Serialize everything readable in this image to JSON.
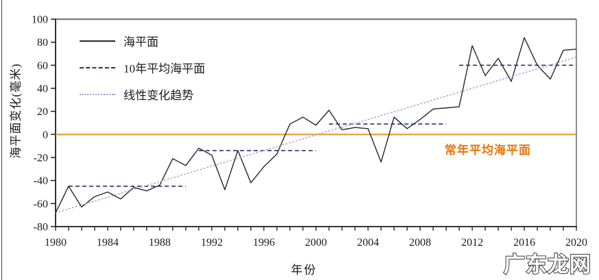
{
  "watermark": {
    "text": "广东龙网"
  },
  "chart_data": {
    "type": "line",
    "title": "",
    "xlabel": "年份",
    "ylabel": "海平面变化(毫米)",
    "xlim": [
      1980,
      2020
    ],
    "ylim": [
      -80,
      100
    ],
    "x_tick_labels": [
      1980,
      1984,
      1988,
      1992,
      1996,
      2000,
      2004,
      2008,
      2012,
      2016,
      2020
    ],
    "x_minor_tick_step": 1,
    "y_tick_labels": [
      100,
      80,
      60,
      40,
      20,
      0,
      -20,
      -40,
      -60,
      -80
    ],
    "grid": false,
    "legend_position": "upper-left-inside",
    "border_color": "#808080",
    "axis_color": "#1a1a1a",
    "series": [
      {
        "name": "海平面",
        "type": "line",
        "line_style": "solid",
        "color": "#262626",
        "x_start": 1980,
        "x_step": 1,
        "values": [
          -68,
          -45,
          -63,
          -54,
          -50,
          -56,
          -46,
          -49,
          -44,
          -21,
          -27,
          -12,
          -18,
          -48,
          -14,
          -42,
          -28,
          -17,
          9,
          15,
          8,
          21,
          4,
          6,
          5,
          -24,
          15,
          5,
          13,
          22,
          23,
          24,
          77,
          51,
          66,
          46,
          84,
          60,
          48,
          73,
          74
        ]
      },
      {
        "name": "10年平均海平面",
        "type": "step-segments",
        "line_style": "dashed",
        "color": "#1F3270",
        "segments": [
          {
            "x_start": 1981,
            "x_end": 1990,
            "value": -45
          },
          {
            "x_start": 1991,
            "x_end": 2000,
            "value": -14
          },
          {
            "x_start": 2001,
            "x_end": 2010,
            "value": 9
          },
          {
            "x_start": 2011,
            "x_end": 2020,
            "value": 60
          }
        ]
      },
      {
        "name": "线性变化趋势",
        "type": "trend",
        "line_style": "dotted",
        "color": "#A693C9",
        "x": [
          1980,
          2020
        ],
        "values": [
          -68,
          67
        ]
      }
    ],
    "reference_line": {
      "label": "常年平均海平面",
      "value": 0,
      "color": "#E8922E",
      "label_color": "#E2770E"
    }
  }
}
